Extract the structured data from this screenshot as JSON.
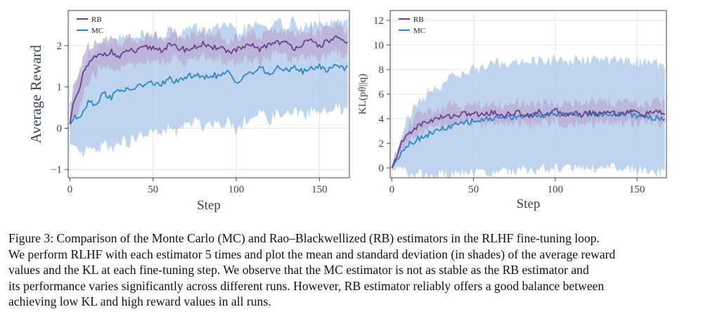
{
  "colors": {
    "rb": "#6b3f8c",
    "rb_band": "#b9a6d2",
    "mc": "#2e86c7",
    "mc_band": "#a9c7e8",
    "axis": "#3a4454",
    "grid": "#e2e5ea"
  },
  "chart_data": [
    {
      "type": "line",
      "title": "",
      "xlabel": "Step",
      "ylabel": "Average Reward",
      "xlim": [
        -1,
        168
      ],
      "ylim": [
        -1.2,
        2.85
      ],
      "xticks": [
        0,
        50,
        100,
        150
      ],
      "xtick_labels": [
        "0",
        "50",
        "100",
        "150"
      ],
      "yticks": [
        -1,
        0,
        1,
        2
      ],
      "ytick_labels": [
        "−1",
        "0",
        "1",
        "2"
      ],
      "legend": "top-left",
      "series": [
        {
          "name": "RB",
          "color_key": "rb",
          "band_key": "rb_band",
          "x": [
            0,
            2,
            5,
            8,
            10,
            15,
            20,
            25,
            30,
            35,
            40,
            45,
            50,
            55,
            60,
            65,
            70,
            75,
            80,
            85,
            90,
            95,
            100,
            105,
            110,
            115,
            120,
            125,
            130,
            135,
            140,
            145,
            150,
            155,
            160,
            165,
            167
          ],
          "mean": [
            0.1,
            0.6,
            0.8,
            1.3,
            1.5,
            1.7,
            1.8,
            1.85,
            1.7,
            1.9,
            1.85,
            1.95,
            1.95,
            1.9,
            2.0,
            1.95,
            1.9,
            1.95,
            2.05,
            1.9,
            2.0,
            1.85,
            1.9,
            1.95,
            2.0,
            1.9,
            2.05,
            2.1,
            2.05,
            1.95,
            2.05,
            2.1,
            2.0,
            2.1,
            2.2,
            2.05,
            2.05
          ],
          "std": [
            0.15,
            0.35,
            0.45,
            0.5,
            0.45,
            0.4,
            0.35,
            0.35,
            0.35,
            0.3,
            0.3,
            0.3,
            0.3,
            0.3,
            0.3,
            0.3,
            0.3,
            0.3,
            0.3,
            0.3,
            0.3,
            0.3,
            0.3,
            0.3,
            0.3,
            0.3,
            0.3,
            0.3,
            0.3,
            0.3,
            0.3,
            0.3,
            0.3,
            0.3,
            0.3,
            0.3,
            0.3
          ]
        },
        {
          "name": "MC",
          "color_key": "mc",
          "band_key": "mc_band",
          "x": [
            0,
            3,
            6,
            9,
            12,
            15,
            20,
            25,
            30,
            35,
            40,
            45,
            50,
            55,
            60,
            65,
            70,
            75,
            80,
            85,
            90,
            95,
            100,
            105,
            110,
            115,
            120,
            125,
            130,
            135,
            140,
            145,
            150,
            155,
            160,
            165,
            167
          ],
          "mean": [
            0.1,
            0.25,
            0.3,
            0.5,
            0.7,
            0.55,
            0.85,
            0.75,
            0.95,
            0.9,
            1.0,
            1.05,
            1.1,
            1.05,
            1.2,
            1.1,
            1.25,
            1.3,
            1.2,
            1.3,
            1.25,
            1.35,
            1.1,
            1.3,
            1.35,
            1.45,
            1.3,
            1.45,
            1.4,
            1.5,
            1.35,
            1.45,
            1.5,
            1.4,
            1.55,
            1.45,
            1.55
          ],
          "std": [
            0.5,
            0.8,
            1.0,
            1.1,
            1.15,
            1.2,
            1.2,
            1.25,
            1.25,
            1.25,
            1.25,
            1.2,
            1.2,
            1.2,
            1.2,
            1.2,
            1.15,
            1.15,
            1.15,
            1.15,
            1.15,
            1.15,
            1.15,
            1.1,
            1.1,
            1.1,
            1.1,
            1.1,
            1.1,
            1.1,
            1.05,
            1.05,
            1.05,
            1.05,
            1.05,
            1.05,
            1.05
          ]
        }
      ]
    },
    {
      "type": "line",
      "title": "",
      "xlabel": "Step",
      "ylabel": "KL(pθ||q)",
      "xlim": [
        -1,
        168
      ],
      "ylim": [
        -0.8,
        12.8
      ],
      "xticks": [
        0,
        50,
        100,
        150
      ],
      "xtick_labels": [
        "0",
        "50",
        "100",
        "150"
      ],
      "yticks": [
        0,
        2,
        4,
        6,
        8,
        10,
        12
      ],
      "ytick_labels": [
        "0",
        "2",
        "4",
        "6",
        "8",
        "10",
        "12"
      ],
      "legend": "top-left",
      "series": [
        {
          "name": "RB",
          "color_key": "rb",
          "band_key": "rb_band",
          "x": [
            0,
            3,
            6,
            10,
            15,
            20,
            25,
            30,
            35,
            40,
            45,
            50,
            55,
            60,
            65,
            70,
            75,
            80,
            85,
            90,
            95,
            100,
            105,
            110,
            115,
            120,
            125,
            130,
            135,
            140,
            145,
            150,
            155,
            160,
            165,
            167
          ],
          "mean": [
            0.0,
            1.0,
            2.0,
            2.8,
            3.3,
            3.7,
            3.9,
            4.1,
            4.2,
            4.3,
            4.4,
            4.4,
            4.3,
            4.5,
            4.4,
            4.3,
            4.5,
            4.4,
            4.3,
            4.5,
            4.4,
            4.6,
            4.4,
            4.5,
            4.3,
            4.5,
            4.4,
            4.6,
            4.5,
            4.4,
            4.6,
            4.5,
            4.3,
            4.6,
            4.4,
            4.4
          ],
          "std": [
            0.1,
            0.4,
            0.6,
            0.7,
            0.8,
            0.8,
            0.8,
            0.8,
            0.8,
            0.8,
            0.8,
            0.8,
            0.8,
            0.8,
            0.8,
            0.8,
            0.8,
            0.8,
            0.8,
            0.8,
            0.8,
            0.8,
            0.8,
            0.8,
            0.8,
            0.8,
            0.8,
            0.8,
            0.8,
            0.8,
            0.8,
            0.8,
            0.8,
            0.8,
            0.8,
            0.8
          ]
        },
        {
          "name": "MC",
          "color_key": "mc",
          "band_key": "mc_band",
          "x": [
            0,
            3,
            6,
            10,
            15,
            20,
            25,
            30,
            35,
            40,
            45,
            50,
            55,
            60,
            65,
            70,
            75,
            80,
            85,
            90,
            95,
            100,
            105,
            110,
            115,
            120,
            125,
            130,
            135,
            140,
            145,
            150,
            155,
            160,
            165,
            167
          ],
          "mean": [
            0.0,
            0.7,
            1.4,
            1.9,
            2.3,
            2.6,
            2.9,
            3.1,
            3.3,
            3.5,
            3.7,
            3.8,
            3.9,
            4.0,
            4.1,
            4.1,
            4.2,
            4.2,
            4.3,
            4.3,
            4.3,
            4.4,
            4.3,
            4.4,
            4.3,
            4.4,
            4.4,
            4.3,
            4.4,
            4.3,
            4.4,
            4.2,
            4.3,
            4.0,
            4.1,
            4.0
          ],
          "std": [
            0.2,
            0.8,
            1.5,
            2.2,
            2.8,
            3.2,
            3.5,
            3.7,
            3.9,
            4.0,
            4.1,
            4.2,
            4.3,
            4.3,
            4.4,
            4.4,
            4.4,
            4.4,
            4.4,
            4.4,
            4.4,
            4.4,
            4.4,
            4.4,
            4.4,
            4.4,
            4.4,
            4.4,
            4.4,
            4.4,
            4.4,
            4.4,
            4.4,
            4.4,
            4.4,
            4.4
          ]
        }
      ]
    }
  ],
  "caption": {
    "lines": [
      "Figure 3: Comparison of the Monte Carlo (MC) and Rao–Blackwellized (RB) estimators in the RLHF fine-tuning loop.",
      "We perform RLHF with each estimator 5 times and plot the mean and standard deviation (in shades) of the average reward",
      "values and the KL at each fine-tuning step. We observe that the MC estimator is not as stable as the RB estimator and",
      "its performance varies significantly across different runs. However, RB estimator reliably offers a good balance between",
      "achieving low KL and high reward values in all runs."
    ]
  }
}
